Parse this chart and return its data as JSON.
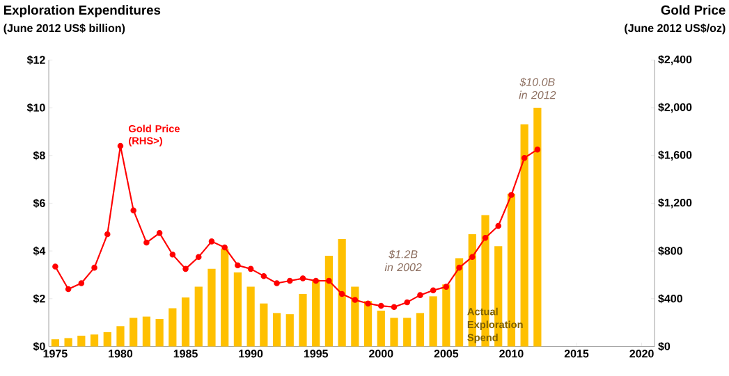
{
  "chart_data": {
    "type": "bar",
    "ylabel": "Exploration Expenditures",
    "y2label": "Gold Price",
    "x": [
      1975,
      1976,
      1977,
      1978,
      1979,
      1980,
      1981,
      1982,
      1983,
      1984,
      1985,
      1986,
      1987,
      1988,
      1989,
      1990,
      1991,
      1992,
      1993,
      1994,
      1995,
      1996,
      1997,
      1998,
      1999,
      2000,
      2001,
      2002,
      2003,
      2004,
      2005,
      2006,
      2007,
      2008,
      2009,
      2010,
      2011,
      2012
    ],
    "series": [
      {
        "name": "Actual Exploration Spend",
        "color": "#ffc000",
        "values": [
          0.3,
          0.35,
          0.45,
          0.5,
          0.6,
          0.85,
          1.2,
          1.25,
          1.15,
          1.6,
          2.05,
          2.5,
          3.25,
          4.1,
          3.1,
          2.5,
          1.8,
          1.4,
          1.35,
          2.2,
          2.8,
          3.8,
          4.5,
          2.5,
          1.9,
          1.5,
          1.2,
          1.2,
          1.4,
          2.1,
          2.6,
          3.7,
          4.7,
          5.5,
          4.2,
          6.4,
          9.3,
          10.0
        ]
      },
      {
        "name": "Gold Price (RHS>)",
        "type": "line",
        "axis": "y2",
        "color": "#ff0000",
        "marker": "circle",
        "values": [
          670,
          480,
          530,
          660,
          940,
          1680,
          1140,
          870,
          950,
          770,
          650,
          750,
          880,
          830,
          680,
          650,
          590,
          530,
          550,
          570,
          550,
          550,
          440,
          390,
          360,
          340,
          330,
          370,
          430,
          470,
          500,
          660,
          750,
          910,
          1010,
          1270,
          1580,
          1650
        ]
      }
    ],
    "xlim": [
      1974.5,
      2021
    ],
    "xticks": [
      1975,
      1980,
      1985,
      1990,
      1995,
      2000,
      2005,
      2010,
      2015,
      2020
    ],
    "ylim": [
      0,
      12
    ],
    "yticks": [
      {
        "value": 0,
        "label": "$0"
      },
      {
        "value": 2,
        "label": "$2"
      },
      {
        "value": 4,
        "label": "$4"
      },
      {
        "value": 6,
        "label": "$6"
      },
      {
        "value": 8,
        "label": "$8"
      },
      {
        "value": 10,
        "label": "$10"
      },
      {
        "value": 12,
        "label": "$12"
      }
    ],
    "y2lim": [
      0,
      2400
    ],
    "y2ticks": [
      {
        "value": 0,
        "label": "$0"
      },
      {
        "value": 400,
        "label": "$400"
      },
      {
        "value": 800,
        "label": "$800"
      },
      {
        "value": 1200,
        "label": "$1,200"
      },
      {
        "value": 1600,
        "label": "$1,600"
      },
      {
        "value": 2000,
        "label": "$2,000"
      },
      {
        "value": 2400,
        "label": "$2,400"
      }
    ],
    "annotations": [
      "(June 2012 US$ billion)",
      "(June 2012 US$/oz)",
      {
        "text": "$10.0B in 2012",
        "x": 2012,
        "y": 10
      },
      "$1.2B in 2002"
    ]
  }
}
